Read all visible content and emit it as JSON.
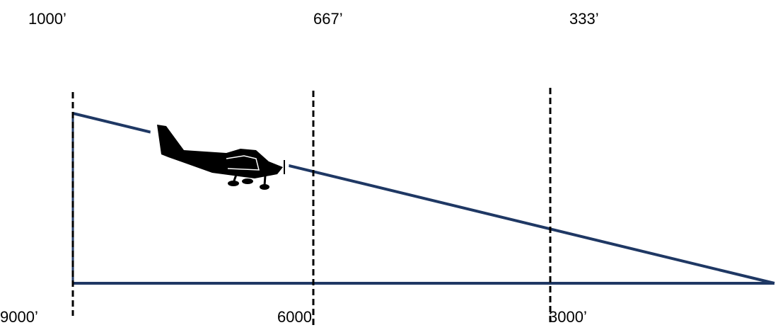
{
  "top_labels": [
    "1000’",
    "667’",
    "333’"
  ],
  "bottom_labels": [
    "9000’",
    "6000’",
    "3000’"
  ]
}
